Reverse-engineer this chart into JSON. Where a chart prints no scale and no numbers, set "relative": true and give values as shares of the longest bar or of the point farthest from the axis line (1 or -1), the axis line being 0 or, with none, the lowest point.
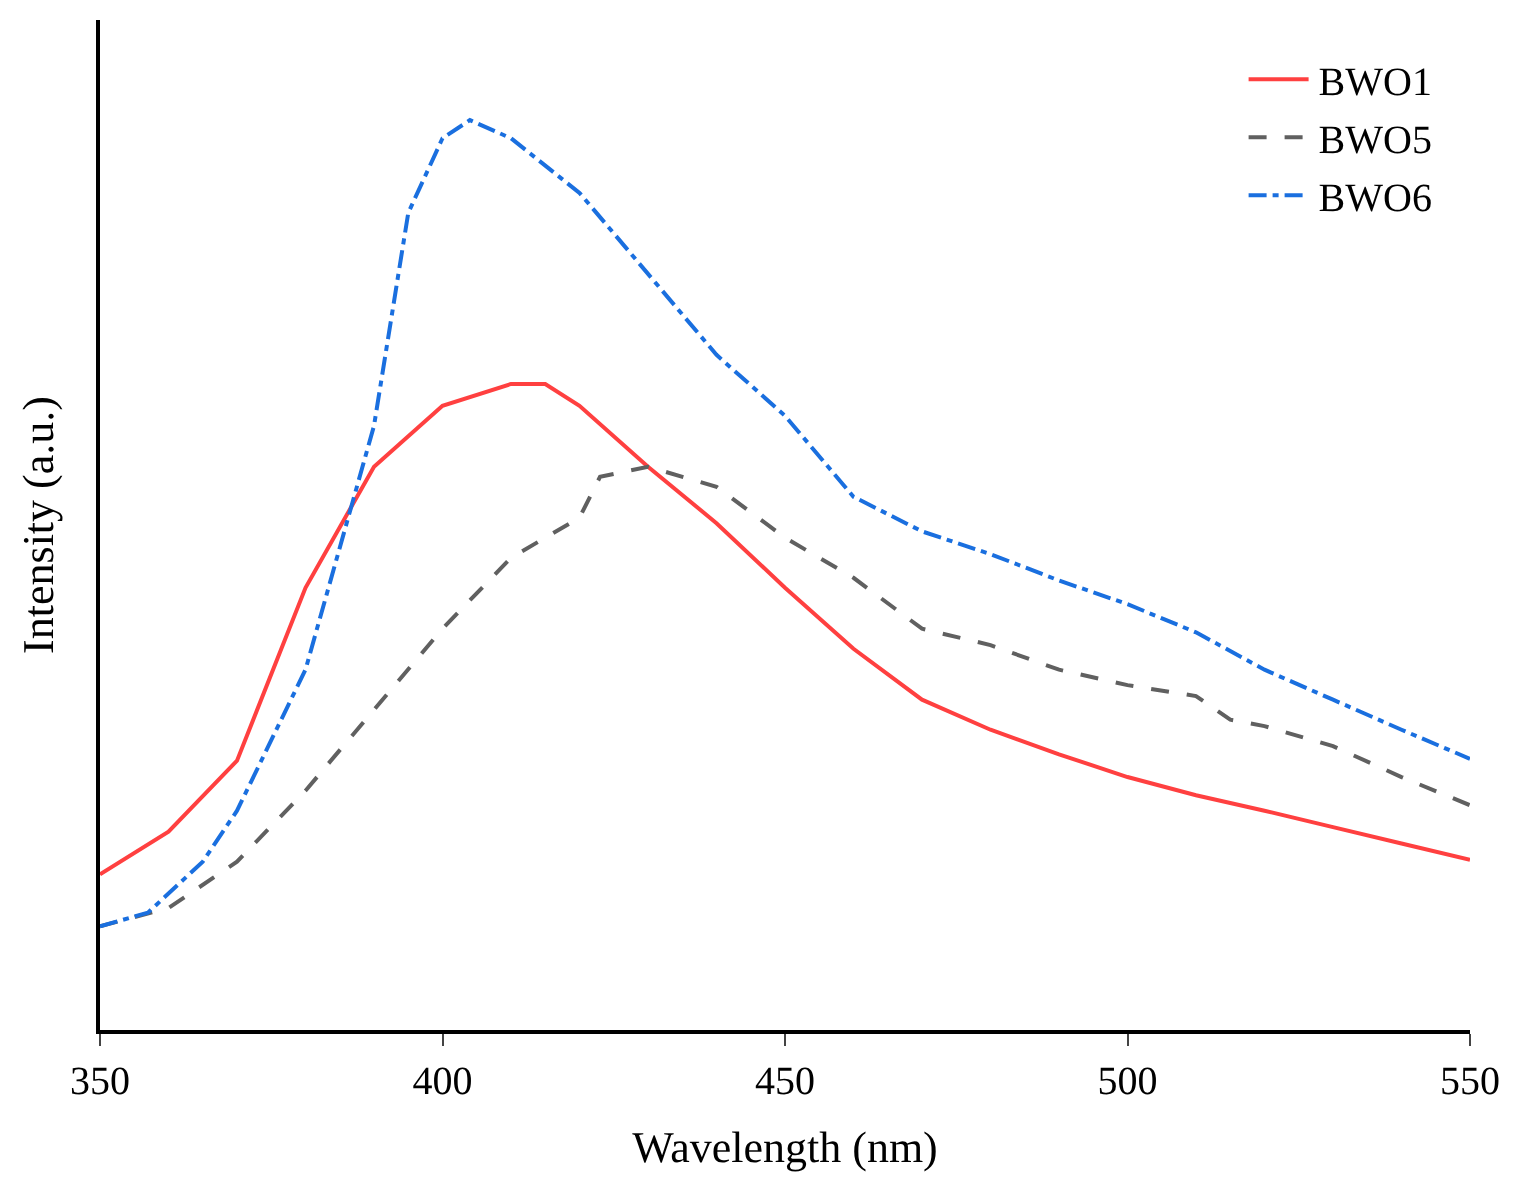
{
  "chart_data": {
    "type": "line",
    "relative": true,
    "xlabel": "Wavelength (nm)",
    "ylabel": "Intensity (a.u.)",
    "xlim": [
      350,
      550
    ],
    "xticks": [
      350,
      400,
      450,
      500,
      550
    ],
    "legend": "top right",
    "marker": "none",
    "series": [
      {
        "name": "BWO1",
        "color": "#ff4040",
        "line_style": "solid",
        "x": [
          350,
          360,
          370,
          380,
          390,
          400,
          410,
          415,
          420,
          430,
          440,
          450,
          460,
          470,
          480,
          490,
          500,
          510,
          520,
          530,
          540,
          550
        ],
        "values": [
          0.171,
          0.218,
          0.296,
          0.486,
          0.619,
          0.686,
          0.71,
          0.71,
          0.686,
          0.619,
          0.557,
          0.486,
          0.419,
          0.363,
          0.33,
          0.303,
          0.278,
          0.258,
          0.241,
          0.223,
          0.205,
          0.187
        ]
      },
      {
        "name": "BWO5",
        "color": "#606060",
        "line_style": "dashed",
        "x": [
          350,
          360,
          370,
          380,
          390,
          400,
          410,
          420,
          423,
          430,
          440,
          450,
          460,
          470,
          480,
          490,
          500,
          510,
          515,
          520,
          530,
          540,
          550
        ],
        "values": [
          0.114,
          0.134,
          0.185,
          0.263,
          0.352,
          0.441,
          0.519,
          0.563,
          0.608,
          0.619,
          0.597,
          0.541,
          0.497,
          0.441,
          0.423,
          0.396,
          0.379,
          0.367,
          0.341,
          0.334,
          0.312,
          0.278,
          0.247
        ]
      },
      {
        "name": "BWO6",
        "color": "#1a6fdf",
        "line_style": "dashdot",
        "x": [
          350,
          357,
          365,
          370,
          380,
          390,
          395,
          400,
          404,
          410,
          420,
          430,
          440,
          450,
          460,
          470,
          480,
          490,
          500,
          510,
          520,
          530,
          540,
          550
        ],
        "values": [
          0.114,
          0.129,
          0.185,
          0.241,
          0.396,
          0.664,
          0.898,
          0.98,
          1.0,
          0.98,
          0.92,
          0.831,
          0.742,
          0.675,
          0.586,
          0.548,
          0.523,
          0.494,
          0.468,
          0.437,
          0.396,
          0.363,
          0.33,
          0.298
        ]
      }
    ]
  }
}
